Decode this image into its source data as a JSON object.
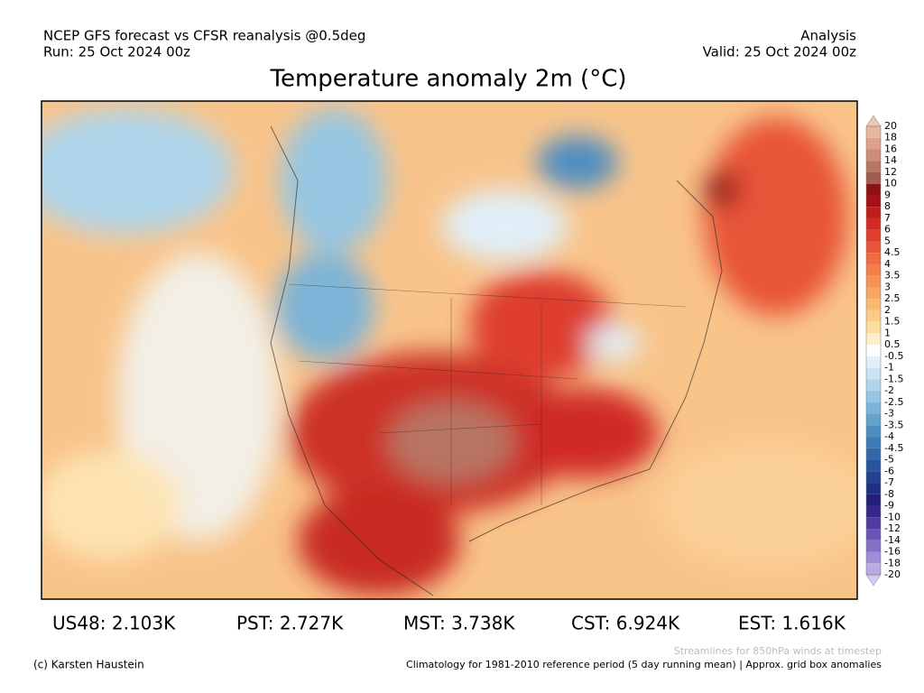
{
  "header": {
    "left_line1": "NCEP GFS forecast vs CFSR reanalysis @0.5deg",
    "left_line2": "Run: 25 Oct 2024 00z",
    "right_line1": "Analysis",
    "right_line2": "Valid: 25 Oct 2024 00z"
  },
  "title": "Temperature anomaly 2m (°C)",
  "colorbar": {
    "ticks": [
      20,
      18,
      16,
      14,
      12,
      10,
      9,
      8,
      7,
      6,
      5,
      4.5,
      4,
      3.5,
      3,
      2.5,
      2,
      1.5,
      1,
      0.5,
      -0.5,
      -1,
      -1.5,
      -2,
      -2.5,
      -3,
      -3.5,
      -4,
      -4.5,
      -5,
      -6,
      -7,
      -8,
      -9,
      -10,
      -12,
      -14,
      -16,
      -18,
      -20
    ],
    "colors": [
      "#f2c6b2",
      "#e8b59f",
      "#dca18b",
      "#cc8c77",
      "#b87563",
      "#a35d4e",
      "#8a1212",
      "#a50f15",
      "#bd1d1f",
      "#d02b25",
      "#de3e2d",
      "#e85538",
      "#ee6a40",
      "#f27e4a",
      "#f59257",
      "#f7a563",
      "#f9b870",
      "#fbca85",
      "#fddc9f",
      "#feeec6",
      "#ffffff",
      "#e0eff8",
      "#c8e3f2",
      "#b0d6eb",
      "#96c6e1",
      "#7db4d7",
      "#65a2cc",
      "#4f8ec1",
      "#3e7ab6",
      "#3066aa",
      "#28539d",
      "#224190",
      "#1f3084",
      "#22207a",
      "#35268a",
      "#4e3b9f",
      "#6a55b6",
      "#8570c8",
      "#a08dd8",
      "#bba9e6",
      "#d6caf2"
    ]
  },
  "stats": [
    "US48: 2.103K",
    "PST: 2.727K",
    "MST: 3.738K",
    "CST: 6.924K",
    "EST: 1.616K"
  ],
  "footer": {
    "streamlines": "Streamlines for 850hPa winds at timestep",
    "credit": "(c) Karsten Haustein",
    "climatology": "Climatology for 1981-2010 reference period (5 day running mean) | Approx. grid box anomalies"
  }
}
